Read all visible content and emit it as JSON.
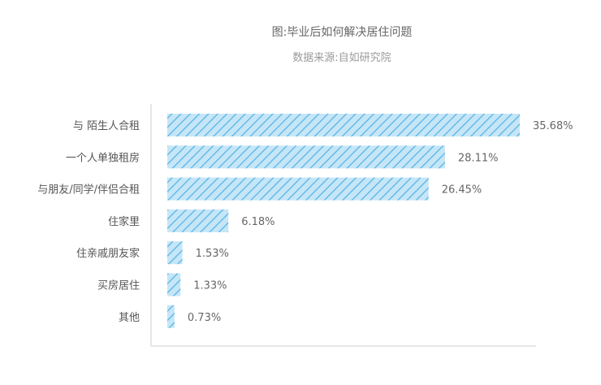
{
  "chart_data": {
    "type": "bar",
    "orientation": "horizontal",
    "title": "图:毕业后如何解决居住问题",
    "subtitle": "数据来源:自如研究院",
    "categories": [
      "与 陌生人合租",
      "一个人单独租房",
      "与朋友/同学/伴侣合租",
      "住家里",
      "住亲戚朋友家",
      "买房居住",
      "其他"
    ],
    "values": [
      35.68,
      28.11,
      26.45,
      6.18,
      1.53,
      1.33,
      0.73
    ],
    "value_labels": [
      "35.68%",
      "28.11%",
      "26.45%",
      "6.18%",
      "1.53%",
      "1.33%",
      "0.73%"
    ],
    "unit": "%",
    "xlim": [
      0,
      36.5
    ],
    "grid": false,
    "legend": "none",
    "colors": {
      "bar_fill": "#c5e6f7",
      "bar_hatch": "#5ab4e6",
      "axis": "#cfcfcf",
      "title": "#666666",
      "subtitle": "#9a9a9a",
      "category_label": "#555555",
      "value_label": "#666666"
    }
  }
}
